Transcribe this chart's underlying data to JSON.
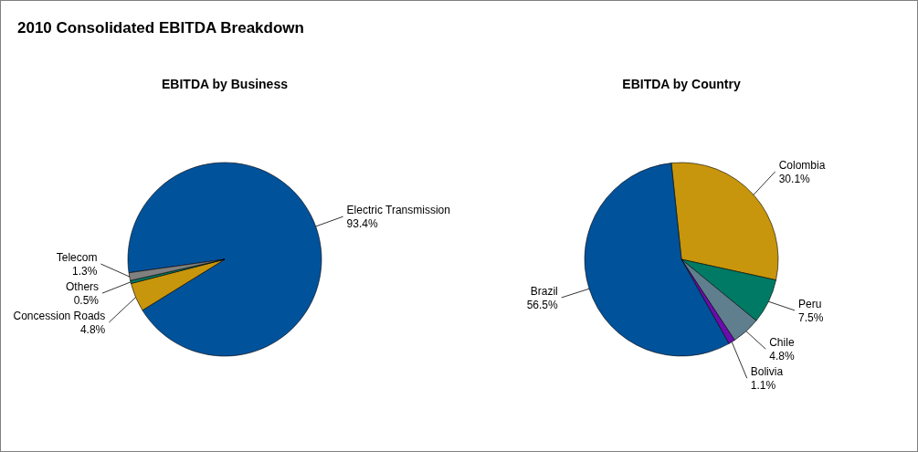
{
  "chart_data": [
    {
      "type": "other",
      "title": "2010 Consolidated EBITDA Breakdown"
    },
    {
      "type": "pie",
      "title": "EBITDA by Business",
      "categories": [
        "Electric Transmission",
        "Concession Roads",
        "Others",
        "Telecom"
      ],
      "values": [
        93.4,
        4.8,
        0.5,
        1.3
      ],
      "colors": [
        "#00529b",
        "#c8960c",
        "#007a64",
        "#808080"
      ],
      "value_labels": [
        "93.4%",
        "4.8%",
        "0.5%",
        "1.3%"
      ]
    },
    {
      "type": "pie",
      "title": "EBITDA by Country",
      "categories": [
        "Colombia",
        "Peru",
        "Chile",
        "Bolivia",
        "Brazil"
      ],
      "values": [
        30.1,
        7.5,
        4.8,
        1.1,
        56.5
      ],
      "colors": [
        "#c8960c",
        "#007a64",
        "#5f7f8f",
        "#6a0dad",
        "#00529b"
      ],
      "value_labels": [
        "30.1%",
        "7.5%",
        "4.8%",
        "1.1%",
        "56.5%"
      ]
    }
  ]
}
